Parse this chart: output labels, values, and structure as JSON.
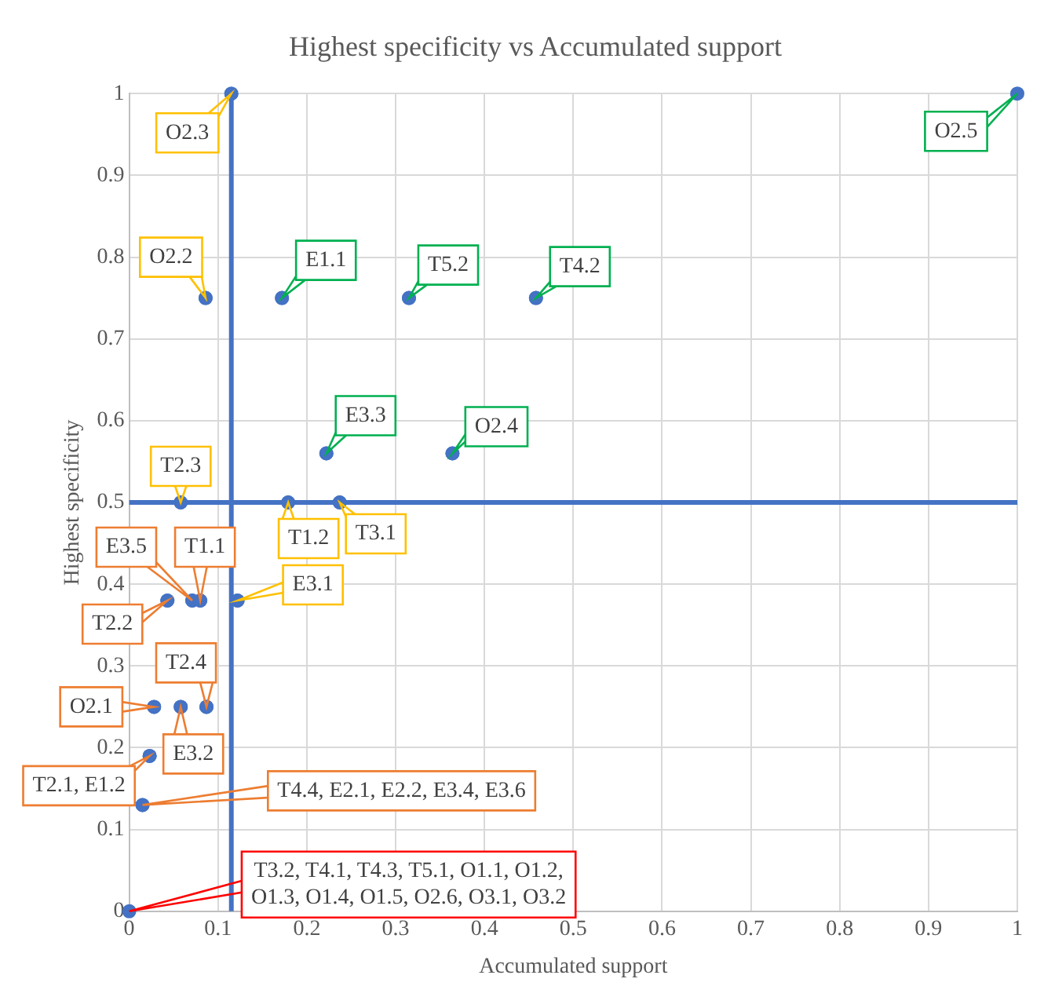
{
  "chart_data": {
    "type": "scatter",
    "title": "Highest specificity vs Accumulated support",
    "xlabel": "Accumulated support",
    "ylabel": "Highest specificity",
    "series": [
      {
        "color": "#4472c4",
        "x": [
          0,
          0.015,
          0.023,
          0.028,
          0.058,
          0.087,
          0.043,
          0.071,
          0.08,
          0.122,
          0.058,
          0.179,
          0.237,
          0.086,
          0.115,
          0.172,
          0.315,
          0.458,
          0.222,
          0.364,
          1
        ],
        "values": [
          0,
          0.13,
          0.19,
          0.25,
          0.25,
          0.25,
          0.38,
          0.38,
          0.38,
          0.38,
          0.5,
          0.5,
          0.5,
          0.75,
          1,
          0.75,
          0.75,
          0.75,
          0.56,
          0.56,
          1
        ]
      }
    ],
    "xlim": [
      0,
      1
    ],
    "ylim": [
      0,
      1
    ],
    "xticks": [
      0,
      0.1,
      0.2,
      0.3,
      0.4,
      0.5,
      0.6,
      0.7,
      0.8,
      0.9,
      1
    ],
    "yticks": [
      0,
      0.1,
      0.2,
      0.3,
      0.4,
      0.5,
      0.6,
      0.7,
      0.8,
      0.9,
      1
    ],
    "grid": true,
    "marker": "circle",
    "ref_lines": [
      {
        "axis": "x",
        "value": 0.115,
        "color": "#4472c4"
      },
      {
        "axis": "y",
        "value": 0.5,
        "color": "#4472c4"
      }
    ],
    "annotations": [
      "T3.2, T4.1, T4.3, T5.1, O1.1, O1.2, O1.3, O1.4, O1.5, O2.6, O3.1, O3.2",
      "T4.4, E2.1, E2.2, E3.4, E3.6",
      {
        "text": "T2.1, E1.2",
        "x": 0.023,
        "y": 0.19
      },
      {
        "text": "O2.1",
        "x": 0.028,
        "y": 0.25
      },
      {
        "text": "E3.2",
        "x": 0.058,
        "y": 0.25
      },
      {
        "text": "T2.4",
        "x": 0.087,
        "y": 0.25
      },
      {
        "text": "T2.2",
        "x": 0.043,
        "y": 0.38
      },
      {
        "text": "E3.5",
        "x": 0.071,
        "y": 0.38
      },
      {
        "text": "T1.1",
        "x": 0.08,
        "y": 0.38
      },
      {
        "text": "E3.1",
        "x": 0.122,
        "y": 0.38
      },
      {
        "text": "T2.3",
        "x": 0.058,
        "y": 0.5
      },
      {
        "text": "T1.2",
        "x": 0.179,
        "y": 0.5
      },
      {
        "text": "T3.1",
        "x": 0.237,
        "y": 0.5
      },
      {
        "text": "O2.2",
        "x": 0.086,
        "y": 0.75
      },
      {
        "text": "O2.3",
        "x": 0.115,
        "y": 1
      },
      {
        "text": "E1.1",
        "x": 0.172,
        "y": 0.75
      },
      {
        "text": "T5.2",
        "x": 0.315,
        "y": 0.75
      },
      {
        "text": "T4.2",
        "x": 0.458,
        "y": 0.75
      },
      {
        "text": "E3.3",
        "x": 0.222,
        "y": 0.56
      },
      {
        "text": "O2.4",
        "x": 0.364,
        "y": 0.56
      },
      {
        "text": "O2.5",
        "x": 1,
        "y": 1
      }
    ]
  }
}
